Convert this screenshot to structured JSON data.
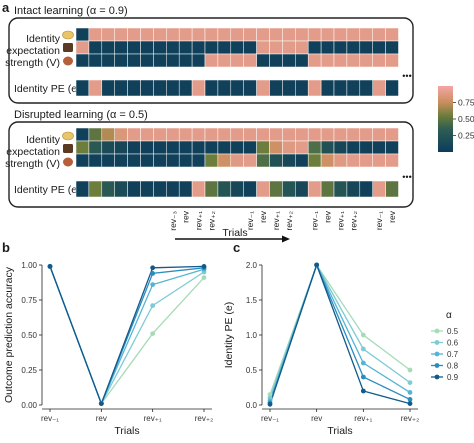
{
  "panel_a": {
    "letter": "a",
    "intact_title": "Intact learning (α = 0.9)",
    "disrupted_title": "Disrupted learning (α = 0.5)",
    "expectation_label_lines": [
      "Identity",
      "expectation",
      "strength (V)"
    ],
    "pe_label": "Identity PE (e)",
    "ellipsis": "•••",
    "rev_labels": [
      "rev₋₃",
      "rev",
      "rev₊₁",
      "rev₊₂",
      "rev₋₁",
      "rev",
      "rev₊₁",
      "rev₊₂",
      "rev₋₁",
      "rev",
      "rev₊₁",
      "rev₊₂",
      "rev₋₁",
      "rev"
    ],
    "rev_columns": [
      7,
      8,
      9,
      10,
      13,
      14,
      15,
      16,
      18,
      19,
      20,
      21,
      23,
      24
    ],
    "trials_label": "Trials",
    "colorbar": {
      "ticks": [
        "0.75",
        "0.50",
        "0.25"
      ],
      "tick_values": [
        0.75,
        0.5,
        0.25
      ],
      "low": "#0c3c5b",
      "mid": "#5e7a3e",
      "high": "#f4a6a6"
    },
    "intact": {
      "v_rows": [
        [
          0.05,
          0.9,
          0.9,
          0.9,
          0.9,
          0.9,
          0.9,
          0.9,
          0.9,
          0.9,
          0.9,
          0.9,
          0.9,
          0.9,
          0.9,
          0.9,
          0.9,
          0.9,
          0.9,
          0.9,
          0.9,
          0.9,
          0.9,
          0.9,
          0.9
        ],
        [
          0.9,
          0.05,
          0.05,
          0.05,
          0.05,
          0.05,
          0.05,
          0.05,
          0.05,
          0.05,
          0.05,
          0.05,
          0.05,
          0.05,
          0.9,
          0.9,
          0.9,
          0.9,
          0.05,
          0.05,
          0.05,
          0.05,
          0.05,
          0.05,
          0.05
        ],
        [
          0.05,
          0.05,
          0.05,
          0.05,
          0.05,
          0.05,
          0.05,
          0.05,
          0.05,
          0.05,
          0.9,
          0.9,
          0.9,
          0.9,
          0.05,
          0.05,
          0.05,
          0.05,
          0.9,
          0.9,
          0.9,
          0.9,
          0.9,
          0.9,
          0.9
        ]
      ],
      "pe_row": [
        0.05,
        0.9,
        0.05,
        0.05,
        0.05,
        0.05,
        0.05,
        0.05,
        0.05,
        0.9,
        0.05,
        0.05,
        0.05,
        0.05,
        0.9,
        0.05,
        0.05,
        0.05,
        0.9,
        0.05,
        0.05,
        0.05,
        0.05,
        0.9,
        0.05
      ]
    },
    "disrupted": {
      "v_rows": [
        [
          0.05,
          0.5,
          0.7,
          0.85,
          0.9,
          0.9,
          0.9,
          0.9,
          0.9,
          0.9,
          0.9,
          0.9,
          0.9,
          0.9,
          0.9,
          0.9,
          0.9,
          0.9,
          0.9,
          0.9,
          0.9,
          0.9,
          0.9,
          0.9,
          0.9
        ],
        [
          0.55,
          0.3,
          0.15,
          0.1,
          0.05,
          0.05,
          0.05,
          0.05,
          0.05,
          0.05,
          0.05,
          0.05,
          0.05,
          0.05,
          0.55,
          0.78,
          0.88,
          0.9,
          0.45,
          0.22,
          0.1,
          0.05,
          0.05,
          0.05,
          0.05
        ],
        [
          0.05,
          0.05,
          0.05,
          0.05,
          0.05,
          0.05,
          0.05,
          0.05,
          0.05,
          0.05,
          0.55,
          0.78,
          0.88,
          0.9,
          0.45,
          0.22,
          0.1,
          0.05,
          0.55,
          0.78,
          0.88,
          0.9,
          0.9,
          0.9,
          0.9
        ]
      ],
      "pe_row": [
        0.05,
        0.55,
        0.3,
        0.15,
        0.05,
        0.05,
        0.05,
        0.05,
        0.05,
        0.9,
        0.5,
        0.25,
        0.1,
        0.05,
        0.9,
        0.5,
        0.25,
        0.1,
        0.9,
        0.5,
        0.25,
        0.1,
        0.05,
        0.9,
        0.5
      ]
    }
  },
  "chart_data": [
    {
      "type": "line",
      "panel": "b",
      "xlabel": "Trials",
      "ylabel": "Outcome prediction accuracy",
      "categories": [
        "rev₋₁",
        "rev",
        "rev₊₁",
        "rev₊₂"
      ],
      "ylim": [
        0,
        1
      ],
      "yticks": [
        0.0,
        0.25,
        0.5,
        0.75,
        1.0
      ],
      "ytick_labels": [
        "0.00",
        "0.25",
        "0.50",
        "0.75",
        "1.00"
      ],
      "grid": false,
      "series": [
        {
          "alpha": 0.5,
          "color": "#a6dbb8",
          "values": [
            0.99,
            0.01,
            0.51,
            0.91
          ]
        },
        {
          "alpha": 0.6,
          "color": "#7fcbd4",
          "values": [
            0.99,
            0.01,
            0.71,
            0.95
          ]
        },
        {
          "alpha": 0.7,
          "color": "#55b4d6",
          "values": [
            0.99,
            0.01,
            0.86,
            0.97
          ]
        },
        {
          "alpha": 0.8,
          "color": "#2b8cbe",
          "values": [
            0.99,
            0.01,
            0.94,
            0.98
          ]
        },
        {
          "alpha": 0.9,
          "color": "#125a8c",
          "values": [
            0.99,
            0.01,
            0.98,
            0.99
          ]
        }
      ]
    },
    {
      "type": "line",
      "panel": "c",
      "xlabel": "Trials",
      "ylabel": "Identity PE (e)",
      "categories": [
        "rev₋₁",
        "rev",
        "rev₊₁",
        "rev₊₂"
      ],
      "ylim": [
        0,
        2
      ],
      "yticks": [
        0.0,
        0.5,
        1.0,
        1.5,
        2.0
      ],
      "ytick_labels": [
        "0.0",
        "0.5",
        "1.0",
        "1.5",
        "2.0"
      ],
      "grid": false,
      "legend": {
        "title": "α",
        "position": "right",
        "labels": [
          "0.5",
          "0.6",
          "0.7",
          "0.8",
          "0.9"
        ]
      },
      "series": [
        {
          "alpha": 0.5,
          "color": "#a6dbb8",
          "values": [
            0.15,
            2.0,
            1.0,
            0.5
          ]
        },
        {
          "alpha": 0.6,
          "color": "#7fcbd4",
          "values": [
            0.1,
            2.0,
            0.8,
            0.32
          ]
        },
        {
          "alpha": 0.7,
          "color": "#55b4d6",
          "values": [
            0.06,
            2.0,
            0.6,
            0.18
          ]
        },
        {
          "alpha": 0.8,
          "color": "#2b8cbe",
          "values": [
            0.03,
            2.0,
            0.4,
            0.08
          ]
        },
        {
          "alpha": 0.9,
          "color": "#125a8c",
          "values": [
            0.01,
            2.0,
            0.2,
            0.02
          ]
        }
      ]
    }
  ],
  "panel_b": {
    "letter": "b"
  },
  "panel_c": {
    "letter": "c"
  }
}
